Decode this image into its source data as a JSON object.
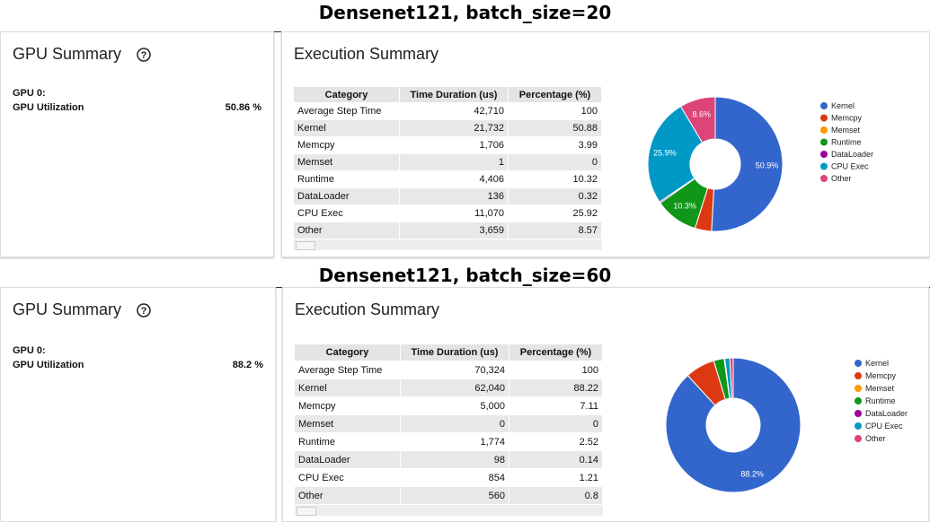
{
  "sections": [
    {
      "title": "Densenet121, batch_size=20",
      "gpu_summary": {
        "title": "GPU Summary",
        "gpu": "GPU 0:",
        "utilization_label": "GPU Utilization",
        "utilization_value": "50.86 %"
      },
      "execution": {
        "title": "Execution Summary",
        "table": {
          "header": [
            "Category",
            "Time Duration (us)",
            "Percentage (%)"
          ],
          "rows": [
            [
              "Average Step Time",
              "42,710",
              "100"
            ],
            [
              "Kernel",
              "21,732",
              "50.88"
            ],
            [
              "Memcpy",
              "1,706",
              "3.99"
            ],
            [
              "Memset",
              "1",
              "0"
            ],
            [
              "Runtime",
              "4,406",
              "10.32"
            ],
            [
              "DataLoader",
              "136",
              "0.32"
            ],
            [
              "CPU Exec",
              "11,070",
              "25.92"
            ],
            [
              "Other",
              "3,659",
              "8.57"
            ]
          ]
        }
      }
    },
    {
      "title": "Densenet121, batch_size=60",
      "gpu_summary": {
        "title": "GPU Summary",
        "gpu": "GPU 0:",
        "utilization_label": "GPU Utilization",
        "utilization_value": "88.2 %"
      },
      "execution": {
        "title": "Execution Summary",
        "table": {
          "header": [
            "Category",
            "Time Duration (us)",
            "Percentage (%)"
          ],
          "rows": [
            [
              "Average Step Time",
              "70,324",
              "100"
            ],
            [
              "Kernel",
              "62,040",
              "88.22"
            ],
            [
              "Memcpy",
              "5,000",
              "7.11"
            ],
            [
              "Memset",
              "0",
              "0"
            ],
            [
              "Runtime",
              "1,774",
              "2.52"
            ],
            [
              "DataLoader",
              "98",
              "0.14"
            ],
            [
              "CPU Exec",
              "854",
              "1.21"
            ],
            [
              "Other",
              "560",
              "0.8"
            ]
          ]
        }
      }
    }
  ],
  "chart_data": [
    {
      "type": "pie",
      "categories": [
        "Kernel",
        "Memcpy",
        "Memset",
        "Runtime",
        "DataLoader",
        "CPU Exec",
        "Other"
      ],
      "values": [
        50.88,
        3.99,
        0,
        10.32,
        0.32,
        25.92,
        8.57
      ],
      "value_labels": [
        "50.9%",
        null,
        null,
        "10.3%",
        null,
        "25.9%",
        "8.6%"
      ],
      "colors": [
        "#3366cc",
        "#dc3912",
        "#ff9900",
        "#109618",
        "#990099",
        "#0099c6",
        "#dd4477"
      ]
    },
    {
      "type": "pie",
      "categories": [
        "Kernel",
        "Memcpy",
        "Memset",
        "Runtime",
        "DataLoader",
        "CPU Exec",
        "Other"
      ],
      "values": [
        88.22,
        7.11,
        0,
        2.52,
        0.14,
        1.21,
        0.8
      ],
      "value_labels": [
        "88.2%",
        null,
        null,
        null,
        null,
        null,
        null
      ],
      "colors": [
        "#3366cc",
        "#dc3912",
        "#ff9900",
        "#109618",
        "#990099",
        "#0099c6",
        "#dd4477"
      ]
    }
  ]
}
